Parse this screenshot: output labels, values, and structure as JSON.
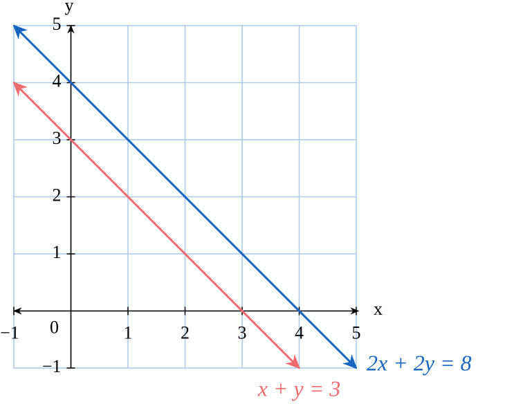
{
  "chart_data": {
    "type": "line",
    "x_label": "x",
    "y_label": "y",
    "xlim": [
      -1,
      5
    ],
    "ylim": [
      -1,
      5
    ],
    "xticks": [
      {
        "value": -1,
        "label": "−1"
      },
      0,
      1,
      2,
      3,
      4,
      5
    ],
    "yticks": [
      {
        "value": -1,
        "label": "−1"
      },
      1,
      2,
      3,
      4,
      5
    ],
    "grid": true,
    "grid_color": "#a9c9e6",
    "series": [
      {
        "name": "2x + 2y = 8",
        "color": "#1565c0",
        "x": [
          -1,
          5
        ],
        "values": [
          5,
          -1
        ]
      },
      {
        "name": "x + y = 3",
        "color": "#f26b6f",
        "x": [
          -1,
          4
        ],
        "values": [
          4,
          -1
        ]
      }
    ]
  }
}
